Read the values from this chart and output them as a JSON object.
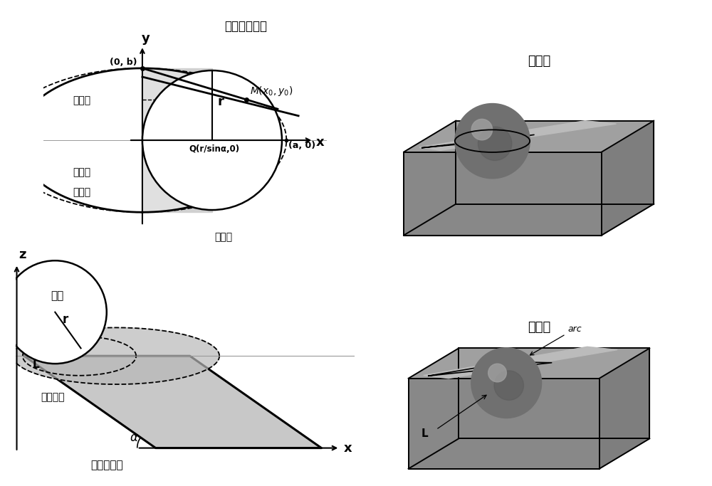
{
  "bg_color": "#ffffff",
  "title_top_left": "斜槽底部位置",
  "title_top_right": "半浸润",
  "title_bot_left": "斜槽倾斜角",
  "title_bot_right": "全浸润",
  "label_semi_minor": "半短轴",
  "label_bead_1": "微珠落",
  "label_bead_2": "点位置",
  "label_semi_major": "半长轴",
  "label_slope_height_1": "斜槽斜高",
  "label_radius": "半径",
  "gray_rect": "#d0d0d0",
  "gray_ellipse_fill": "#e0e0e0",
  "gray_trap": "#c8c8c8",
  "gray_trap2": "#b8b8b8",
  "box_front": "#888888",
  "box_top": "#aaaaaa",
  "box_side": "#777777",
  "sphere_color": "#707070",
  "sphere_highlight": "#a0a0a0",
  "groove_color": "#bbbbbb"
}
